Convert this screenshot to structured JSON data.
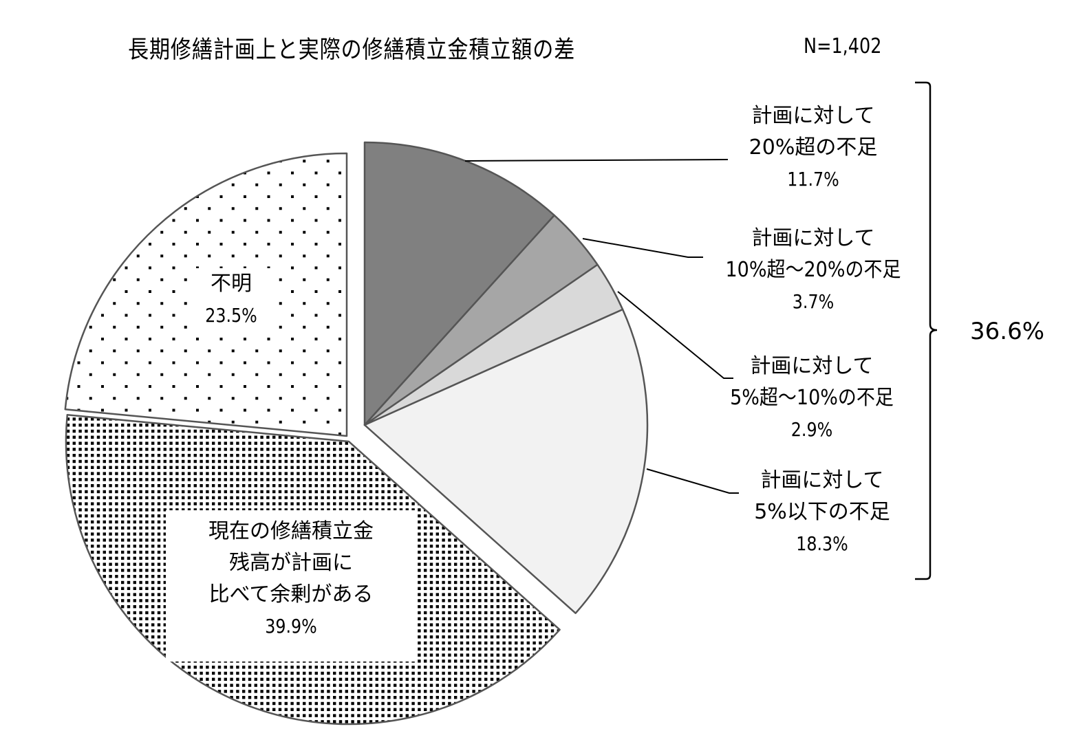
{
  "title": "長期修繕計画上と実際の修繕積立金積立額の差",
  "sample_size": "N=1,402",
  "bracket_total": "36.6%",
  "slices": [
    {
      "key": "over20",
      "lines": [
        "計画に対して",
        "20%超の不足"
      ],
      "pct": "11.7%",
      "value": 11.7,
      "fill": "#808080"
    },
    {
      "key": "10to20",
      "lines": [
        "計画に対して",
        "10%超～20%の不足"
      ],
      "pct": "3.7%",
      "value": 3.7,
      "fill": "#a6a6a6"
    },
    {
      "key": "5to10",
      "lines": [
        "計画に対して",
        "5%超～10%の不足"
      ],
      "pct": "2.9%",
      "value": 2.9,
      "fill": "#d9d9d9"
    },
    {
      "key": "under5",
      "lines": [
        "計画に対して",
        "5%以下の不足"
      ],
      "pct": "18.3%",
      "value": 18.3,
      "fill": "#f2f2f2"
    },
    {
      "key": "surplus",
      "lines": [
        "現在の修繕積立金",
        "残高が計画に",
        "比べて余剰がある"
      ],
      "pct": "39.9%",
      "value": 39.9,
      "fill": "dense-dots"
    },
    {
      "key": "unknown",
      "lines": [
        "不明"
      ],
      "pct": "23.5%",
      "value": 23.5,
      "fill": "sparse-dots"
    }
  ],
  "chart_data": {
    "type": "pie",
    "title": "長期修繕計画上と実際の修繕積立金積立額の差",
    "annotation": "N=1,402",
    "categories": [
      "計画に対して20%超の不足",
      "計画に対して10%超～20%の不足",
      "計画に対して5%超～10%の不足",
      "計画に対して5%以下の不足",
      "現在の修繕積立金残高が計画に比べて余剰がある",
      "不明"
    ],
    "values": [
      11.7,
      3.7,
      2.9,
      18.3,
      39.9,
      23.5
    ],
    "units": "%",
    "group_annotation": {
      "label": "36.6%",
      "members": [
        0,
        1,
        2,
        3
      ],
      "style": "right brace"
    },
    "start_angle": "12 o'clock, clockwise",
    "exploded": [
      0,
      1,
      2,
      3
    ],
    "legend": "none (leader-line labels)"
  }
}
